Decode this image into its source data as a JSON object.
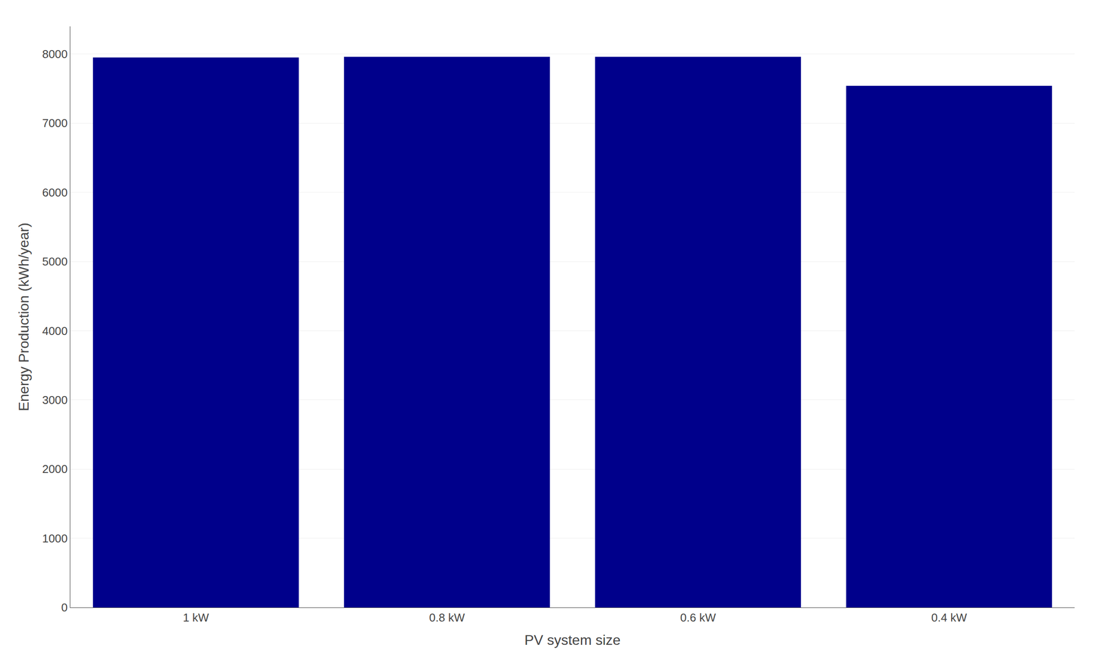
{
  "chart_data": {
    "type": "bar",
    "categories": [
      "1 kW",
      "0.8 kW",
      "0.6 kW",
      "0.4 kW"
    ],
    "values": [
      7950,
      7960,
      7960,
      7540
    ],
    "color": "#00008B",
    "xlabel": "PV system size",
    "ylabel": "Energy Production (kWh/year)",
    "ylim": [
      0,
      8400
    ],
    "yticks": [
      0,
      1000,
      2000,
      3000,
      4000,
      5000,
      6000,
      7000,
      8000
    ],
    "grid": true
  }
}
